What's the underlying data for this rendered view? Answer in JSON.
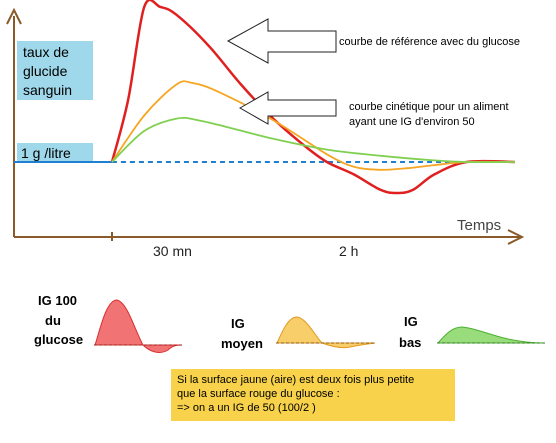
{
  "chart_data": {
    "type": "line",
    "ylabel": [
      "taux de",
      "glucide",
      "sanguin"
    ],
    "xlabel": "Temps",
    "baseline_label": "1 g /litre",
    "x_ticks": [
      "30 mn",
      "2 h"
    ],
    "series": [
      {
        "name": "courbe de référence avec du  glucose",
        "color": "#e02020",
        "points": [
          [
            0,
            0
          ],
          [
            3,
            0.4
          ],
          [
            6,
            1.0
          ],
          [
            9,
            1.0
          ],
          [
            12,
            0.95
          ],
          [
            18,
            0.75
          ],
          [
            24,
            0.5
          ],
          [
            30,
            0.28
          ],
          [
            36,
            0.1
          ],
          [
            40,
            0.0
          ],
          [
            45,
            -0.08
          ],
          [
            50,
            -0.18
          ],
          [
            53,
            -0.2
          ],
          [
            56,
            -0.18
          ],
          [
            60,
            -0.08
          ],
          [
            66,
            0
          ],
          [
            75,
            0
          ]
        ]
      },
      {
        "name": "courbe cinétique pour un aliment ayant une IG d'environ 50",
        "color": "#f5a623",
        "points": [
          [
            0,
            0
          ],
          [
            6,
            0.3
          ],
          [
            12,
            0.5
          ],
          [
            15,
            0.51
          ],
          [
            20,
            0.45
          ],
          [
            30,
            0.27
          ],
          [
            40,
            0.05
          ],
          [
            45,
            -0.03
          ],
          [
            50,
            -0.05
          ],
          [
            55,
            -0.04
          ],
          [
            60,
            -0.02
          ],
          [
            66,
            0
          ],
          [
            75,
            0
          ]
        ]
      },
      {
        "name": "",
        "color": "#7fd050",
        "points": [
          [
            0,
            0
          ],
          [
            6,
            0.2
          ],
          [
            12,
            0.28
          ],
          [
            16,
            0.27
          ],
          [
            22,
            0.22
          ],
          [
            30,
            0.15
          ],
          [
            40,
            0.08
          ],
          [
            50,
            0.04
          ],
          [
            60,
            0.01
          ],
          [
            66,
            0
          ],
          [
            75,
            0
          ]
        ]
      },
      {
        "name": "1 g /litre",
        "color": "#1f7fd0",
        "style": "dashed",
        "points": [
          [
            0,
            0
          ],
          [
            75,
            0
          ]
        ]
      }
    ],
    "annotations": [
      "courbe de référence avec du  glucose",
      "courbe cinétique pour un aliment",
      "ayant une IG d'environ 50"
    ],
    "mini_charts": [
      {
        "label": [
          "IG 100",
          "du",
          "glucose"
        ],
        "color": "#f05a5a"
      },
      {
        "label": [
          "IG",
          "moyen"
        ],
        "color": "#f7c95a"
      },
      {
        "label": [
          "IG",
          "bas"
        ],
        "color": "#8ed86e"
      }
    ]
  },
  "note": {
    "lines": [
      "Si la surface jaune (aire) est  deux fois plus petite",
      "que la surface rouge du glucose :",
      " => on a un IG de 50  (100/2 )"
    ],
    "color": "#f7d24a"
  },
  "colors": {
    "axis": "#8b5a2b",
    "label_box": "#9fd8ea"
  }
}
